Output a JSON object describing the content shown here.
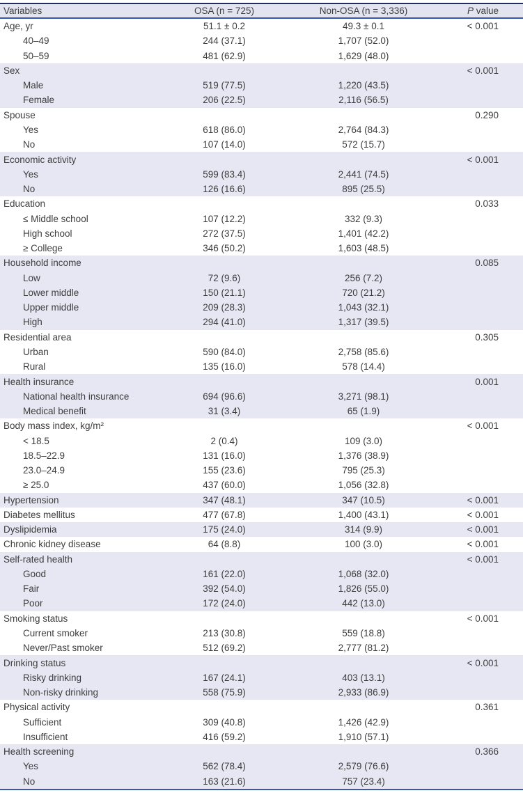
{
  "table": {
    "columns": {
      "variables": "Variables",
      "osa": "OSA (n = 725)",
      "non_osa": "Non-OSA (n = 3,336)",
      "p_italic": "P",
      "p_rest": " value"
    },
    "colors": {
      "stripe": "#e6e7f2",
      "header_bg": "#e2e4f0",
      "top_border": "#252c62",
      "blue_border": "#3a58aa",
      "text": "#3d3d3d"
    },
    "rows": [
      {
        "label": "Age, yr",
        "indent": false,
        "osa": "51.1 ± 0.2",
        "non_osa": "49.3 ± 0.1",
        "p": "< 0.001",
        "shaded": false
      },
      {
        "label": "40–49",
        "indent": true,
        "osa": "244 (37.1)",
        "non_osa": "1,707 (52.0)",
        "p": "",
        "shaded": false
      },
      {
        "label": "50–59",
        "indent": true,
        "osa": "481 (62.9)",
        "non_osa": "1,629 (48.0)",
        "p": "",
        "shaded": false
      },
      {
        "label": "Sex",
        "indent": false,
        "osa": "",
        "non_osa": "",
        "p": "< 0.001",
        "shaded": true
      },
      {
        "label": "Male",
        "indent": true,
        "osa": "519 (77.5)",
        "non_osa": "1,220 (43.5)",
        "p": "",
        "shaded": true
      },
      {
        "label": "Female",
        "indent": true,
        "osa": "206 (22.5)",
        "non_osa": "2,116 (56.5)",
        "p": "",
        "shaded": true
      },
      {
        "label": "Spouse",
        "indent": false,
        "osa": "",
        "non_osa": "",
        "p": "0.290",
        "shaded": false
      },
      {
        "label": "Yes",
        "indent": true,
        "osa": "618 (86.0)",
        "non_osa": "2,764 (84.3)",
        "p": "",
        "shaded": false
      },
      {
        "label": "No",
        "indent": true,
        "osa": "107 (14.0)",
        "non_osa": "572 (15.7)",
        "p": "",
        "shaded": false
      },
      {
        "label": "Economic activity",
        "indent": false,
        "osa": "",
        "non_osa": "",
        "p": "< 0.001",
        "shaded": true
      },
      {
        "label": "Yes",
        "indent": true,
        "osa": "599 (83.4)",
        "non_osa": "2,441 (74.5)",
        "p": "",
        "shaded": true
      },
      {
        "label": "No",
        "indent": true,
        "osa": "126 (16.6)",
        "non_osa": "895 (25.5)",
        "p": "",
        "shaded": true
      },
      {
        "label": "Education",
        "indent": false,
        "osa": "",
        "non_osa": "",
        "p": "0.033",
        "shaded": false
      },
      {
        "label": "≤ Middle school",
        "indent": true,
        "osa": "107 (12.2)",
        "non_osa": "332 (9.3)",
        "p": "",
        "shaded": false
      },
      {
        "label": "High school",
        "indent": true,
        "osa": "272 (37.5)",
        "non_osa": "1,401 (42.2)",
        "p": "",
        "shaded": false
      },
      {
        "label": "≥ College",
        "indent": true,
        "osa": "346 (50.2)",
        "non_osa": "1,603 (48.5)",
        "p": "",
        "shaded": false
      },
      {
        "label": "Household income",
        "indent": false,
        "osa": "",
        "non_osa": "",
        "p": "0.085",
        "shaded": true
      },
      {
        "label": "Low",
        "indent": true,
        "osa": "72 (9.6)",
        "non_osa": "256 (7.2)",
        "p": "",
        "shaded": true
      },
      {
        "label": "Lower middle",
        "indent": true,
        "osa": "150 (21.1)",
        "non_osa": "720 (21.2)",
        "p": "",
        "shaded": true
      },
      {
        "label": "Upper middle",
        "indent": true,
        "osa": "209 (28.3)",
        "non_osa": "1,043 (32.1)",
        "p": "",
        "shaded": true
      },
      {
        "label": "High",
        "indent": true,
        "osa": "294 (41.0)",
        "non_osa": "1,317 (39.5)",
        "p": "",
        "shaded": true
      },
      {
        "label": "Residential area",
        "indent": false,
        "osa": "",
        "non_osa": "",
        "p": "0.305",
        "shaded": false
      },
      {
        "label": "Urban",
        "indent": true,
        "osa": "590 (84.0)",
        "non_osa": "2,758 (85.6)",
        "p": "",
        "shaded": false
      },
      {
        "label": "Rural",
        "indent": true,
        "osa": "135 (16.0)",
        "non_osa": "578 (14.4)",
        "p": "",
        "shaded": false
      },
      {
        "label": "Health insurance",
        "indent": false,
        "osa": "",
        "non_osa": "",
        "p": "0.001",
        "shaded": true
      },
      {
        "label": "National health insurance",
        "indent": true,
        "osa": "694 (96.6)",
        "non_osa": "3,271 (98.1)",
        "p": "",
        "shaded": true
      },
      {
        "label": "Medical benefit",
        "indent": true,
        "osa": "31 (3.4)",
        "non_osa": "65 (1.9)",
        "p": "",
        "shaded": true
      },
      {
        "label": "Body mass index, kg/m²",
        "indent": false,
        "osa": "",
        "non_osa": "",
        "p": "< 0.001",
        "shaded": false
      },
      {
        "label": "< 18.5",
        "indent": true,
        "osa": "2 (0.4)",
        "non_osa": "109 (3.0)",
        "p": "",
        "shaded": false
      },
      {
        "label": "18.5–22.9",
        "indent": true,
        "osa": "131 (16.0)",
        "non_osa": "1,376 (38.9)",
        "p": "",
        "shaded": false
      },
      {
        "label": "23.0–24.9",
        "indent": true,
        "osa": "155 (23.6)",
        "non_osa": "795 (25.3)",
        "p": "",
        "shaded": false
      },
      {
        "label": "≥ 25.0",
        "indent": true,
        "osa": "437 (60.0)",
        "non_osa": "1,056 (32.8)",
        "p": "",
        "shaded": false
      },
      {
        "label": "Hypertension",
        "indent": false,
        "osa": "347 (48.1)",
        "non_osa": "347 (10.5)",
        "p": "< 0.001",
        "shaded": true
      },
      {
        "label": "Diabetes mellitus",
        "indent": false,
        "osa": "477 (67.8)",
        "non_osa": "1,400 (43.1)",
        "p": "< 0.001",
        "shaded": false
      },
      {
        "label": "Dyslipidemia",
        "indent": false,
        "osa": "175 (24.0)",
        "non_osa": "314 (9.9)",
        "p": "< 0.001",
        "shaded": true
      },
      {
        "label": "Chronic kidney disease",
        "indent": false,
        "osa": "64 (8.8)",
        "non_osa": "100 (3.0)",
        "p": "< 0.001",
        "shaded": false
      },
      {
        "label": "Self-rated health",
        "indent": false,
        "osa": "",
        "non_osa": "",
        "p": "< 0.001",
        "shaded": true
      },
      {
        "label": "Good",
        "indent": true,
        "osa": "161 (22.0)",
        "non_osa": "1,068 (32.0)",
        "p": "",
        "shaded": true
      },
      {
        "label": "Fair",
        "indent": true,
        "osa": "392 (54.0)",
        "non_osa": "1,826 (55.0)",
        "p": "",
        "shaded": true
      },
      {
        "label": "Poor",
        "indent": true,
        "osa": "172 (24.0)",
        "non_osa": "442 (13.0)",
        "p": "",
        "shaded": true
      },
      {
        "label": "Smoking status",
        "indent": false,
        "osa": "",
        "non_osa": "",
        "p": "< 0.001",
        "shaded": false
      },
      {
        "label": "Current smoker",
        "indent": true,
        "osa": "213 (30.8)",
        "non_osa": "559 (18.8)",
        "p": "",
        "shaded": false
      },
      {
        "label": "Never/Past smoker",
        "indent": true,
        "osa": "512 (69.2)",
        "non_osa": "2,777 (81.2)",
        "p": "",
        "shaded": false
      },
      {
        "label": "Drinking status",
        "indent": false,
        "osa": "",
        "non_osa": "",
        "p": "< 0.001",
        "shaded": true
      },
      {
        "label": "Risky drinking",
        "indent": true,
        "osa": "167 (24.1)",
        "non_osa": "403 (13.1)",
        "p": "",
        "shaded": true
      },
      {
        "label": "Non-risky drinking",
        "indent": true,
        "osa": "558 (75.9)",
        "non_osa": "2,933 (86.9)",
        "p": "",
        "shaded": true
      },
      {
        "label": "Physical activity",
        "indent": false,
        "osa": "",
        "non_osa": "",
        "p": "0.361",
        "shaded": false
      },
      {
        "label": "Sufficient",
        "indent": true,
        "osa": "309 (40.8)",
        "non_osa": "1,426 (42.9)",
        "p": "",
        "shaded": false
      },
      {
        "label": "Insufficient",
        "indent": true,
        "osa": "416 (59.2)",
        "non_osa": "1,910 (57.1)",
        "p": "",
        "shaded": false
      },
      {
        "label": "Health screening",
        "indent": false,
        "osa": "",
        "non_osa": "",
        "p": "0.366",
        "shaded": true
      },
      {
        "label": "Yes",
        "indent": true,
        "osa": "562 (78.4)",
        "non_osa": "2,579 (76.6)",
        "p": "",
        "shaded": true
      },
      {
        "label": "No",
        "indent": true,
        "osa": "163 (21.6)",
        "non_osa": "757 (23.4)",
        "p": "",
        "shaded": true
      }
    ]
  }
}
